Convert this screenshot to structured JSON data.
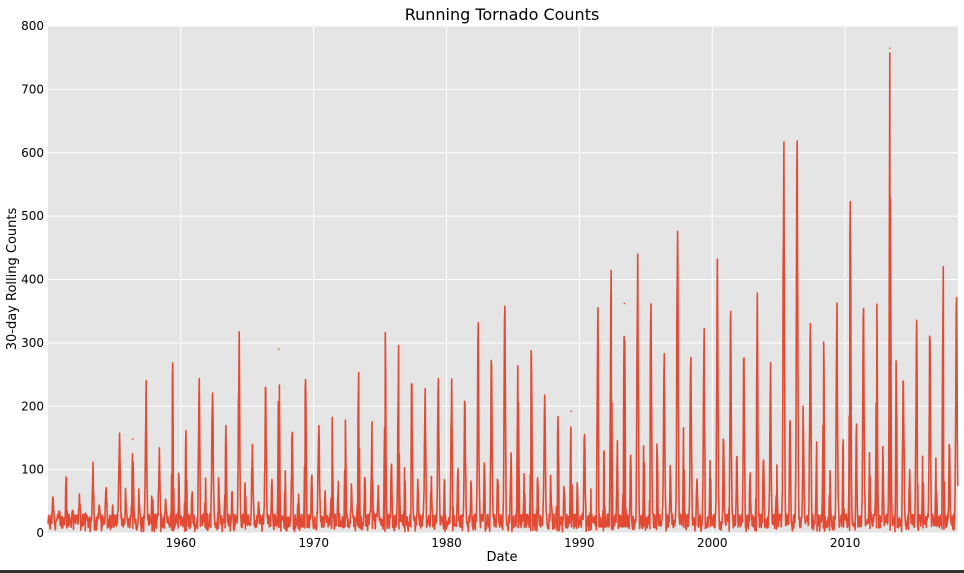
{
  "chart_data": {
    "type": "line",
    "title": "Running Tornado Counts",
    "xlabel": "Date",
    "ylabel": "30-day Rolling Counts",
    "x_axis_type": "date",
    "xlim": [
      "1950-01-01",
      "2018-06-30"
    ],
    "ylim": [
      0,
      800
    ],
    "x_ticks": [
      "1960",
      "1970",
      "1980",
      "1990",
      "2000",
      "2010"
    ],
    "y_ticks": [
      "0",
      "100",
      "200",
      "300",
      "400",
      "500",
      "600",
      "700",
      "800"
    ],
    "grid": true,
    "legend": "none",
    "style": "ggplot",
    "line_color": "#E24A33",
    "plot_background": "#E5E5E5",
    "grid_color": "#FFFFFF",
    "series": [
      {
        "peaks": [
          [
            "1950",
            35
          ],
          [
            "1951",
            65
          ],
          [
            "1952",
            38
          ],
          [
            "1953",
            88
          ],
          [
            "1954",
            55
          ],
          [
            "1955",
            135
          ],
          [
            "1956",
            148
          ],
          [
            "1957",
            220
          ],
          [
            "1958",
            105
          ],
          [
            "1959",
            240
          ],
          [
            "1960",
            140
          ],
          [
            "1961",
            228
          ],
          [
            "1962",
            210
          ],
          [
            "1963",
            145
          ],
          [
            "1964",
            288
          ],
          [
            "1965",
            122
          ],
          [
            "1966",
            218
          ],
          [
            "1967",
            290
          ],
          [
            "1968",
            135
          ],
          [
            "1969",
            226
          ],
          [
            "1970",
            160
          ],
          [
            "1971",
            155
          ],
          [
            "1972",
            150
          ],
          [
            "1973",
            240
          ],
          [
            "1974",
            150
          ],
          [
            "1975",
            308
          ],
          [
            "1976",
            268
          ],
          [
            "1977",
            210
          ],
          [
            "1978",
            215
          ],
          [
            "1979",
            225
          ],
          [
            "1980",
            220
          ],
          [
            "1981",
            180
          ],
          [
            "1982",
            308
          ],
          [
            "1983",
            240
          ],
          [
            "1984",
            345
          ],
          [
            "1985",
            258
          ],
          [
            "1986",
            262
          ],
          [
            "1987",
            195
          ],
          [
            "1988",
            175
          ],
          [
            "1989",
            192
          ],
          [
            "1990",
            130
          ],
          [
            "1991",
            338
          ],
          [
            "1992",
            388
          ],
          [
            "1993",
            362
          ],
          [
            "1994",
            428
          ],
          [
            "1995",
            342
          ],
          [
            "1996",
            262
          ],
          [
            "1997",
            453
          ],
          [
            "1998",
            258
          ],
          [
            "1999",
            302
          ],
          [
            "2000",
            405
          ],
          [
            "2001",
            322
          ],
          [
            "2002",
            252
          ],
          [
            "2003",
            370
          ],
          [
            "2004",
            242
          ],
          [
            "2005",
            596
          ],
          [
            "2006",
            605
          ],
          [
            "2007",
            312
          ],
          [
            "2008",
            285
          ],
          [
            "2009",
            335
          ],
          [
            "2010",
            503
          ],
          [
            "2011",
            330
          ],
          [
            "2012",
            352
          ],
          [
            "2013",
            765
          ],
          [
            "2014",
            230
          ],
          [
            "2015",
            325
          ],
          [
            "2016",
            288
          ],
          [
            "2017",
            396
          ],
          [
            "2018",
            348
          ]
        ]
      }
    ]
  }
}
